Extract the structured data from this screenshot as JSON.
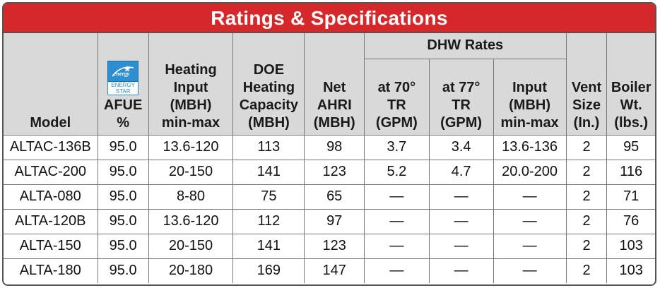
{
  "title": "Ratings & Specifications",
  "logo": {
    "name": "energy-star-logo",
    "text": "ENERGY STAR",
    "color": "#2d8fd0"
  },
  "colors": {
    "title_bg": "#d6272b",
    "header_bg": "#d9d9d9"
  },
  "headers": {
    "model": "Model",
    "afue": [
      "AFUE",
      "%"
    ],
    "heating_input": [
      "Heating",
      "Input",
      "(MBH)",
      "min-max"
    ],
    "doe": [
      "DOE",
      "Heating",
      "Capacity",
      "(MBH)"
    ],
    "net_ahri": [
      "Net",
      "AHRI",
      "(MBH)"
    ],
    "dhw_group": "DHW Rates",
    "dhw_70": [
      "at 70°",
      "TR",
      "(GPM)"
    ],
    "dhw_77": [
      "at 77°",
      "TR",
      "(GPM)"
    ],
    "dhw_input": [
      "Input",
      "(MBH)",
      "min-max"
    ],
    "vent": [
      "Vent",
      "Size",
      "(In.)"
    ],
    "weight": [
      "Boiler",
      "Wt.",
      "(lbs.)"
    ]
  },
  "rows": [
    [
      "ALTAC-136B",
      "95.0",
      "13.6-120",
      "113",
      "98",
      "3.7",
      "3.4",
      "13.6-136",
      "2",
      "95"
    ],
    [
      "ALTAC-200",
      "95.0",
      "20-150",
      "141",
      "123",
      "5.2",
      "4.7",
      "20.0-200",
      "2",
      "116"
    ],
    [
      "ALTA-080",
      "95.0",
      "8-80",
      "75",
      "65",
      "—",
      "—",
      "—",
      "2",
      "71"
    ],
    [
      "ALTA-120B",
      "95.0",
      "13.6-120",
      "112",
      "97",
      "—",
      "—",
      "—",
      "2",
      "76"
    ],
    [
      "ALTA-150",
      "95.0",
      "20-150",
      "141",
      "123",
      "—",
      "—",
      "—",
      "2",
      "103"
    ],
    [
      "ALTA-180",
      "95.0",
      "20-180",
      "169",
      "147",
      "—",
      "—",
      "—",
      "2",
      "103"
    ]
  ]
}
